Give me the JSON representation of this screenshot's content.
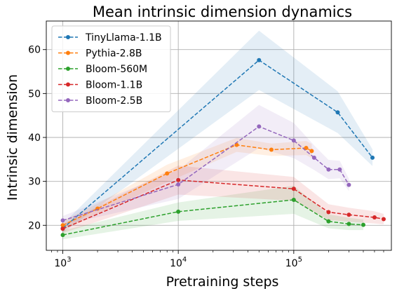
{
  "chart_data": {
    "type": "line",
    "title": "Mean intrinsic dimension dynamics",
    "xlabel": "Pretraining steps",
    "ylabel": "Intrinsic dimension",
    "xscale": "log",
    "xlim": [
      720,
      700000
    ],
    "ylim": [
      14.3,
      66.5
    ],
    "xticks": [
      {
        "value": 1000,
        "base": "10",
        "exp": "3"
      },
      {
        "value": 10000,
        "base": "10",
        "exp": "4"
      },
      {
        "value": 100000,
        "base": "10",
        "exp": "5"
      }
    ],
    "yticks": [
      20,
      30,
      40,
      50,
      60
    ],
    "grid": true,
    "legend": "upper-left",
    "series": [
      {
        "name": "TinyLlama-1.1B",
        "color": "#1f77b4",
        "x": [
          1000,
          50000,
          240000,
          480000
        ],
        "y": [
          19.3,
          57.6,
          45.7,
          35.4
        ],
        "band": [
          [
            18.3,
            20.3
          ],
          [
            50.8,
            64.3
          ],
          [
            41.0,
            50.5
          ],
          [
            33.5,
            37.3
          ]
        ]
      },
      {
        "name": "Pythia-2.8B",
        "color": "#ff7f0e",
        "x": [
          1000,
          2000,
          8000,
          32000,
          64000,
          128000,
          143000
        ],
        "y": [
          20.0,
          23.8,
          31.8,
          38.3,
          37.2,
          37.6,
          36.9
        ],
        "band": [
          [
            19.0,
            21.0
          ],
          [
            22.7,
            24.9
          ],
          [
            29.8,
            33.8
          ],
          [
            36.7,
            39.9
          ],
          [
            35.8,
            38.6
          ],
          [
            36.0,
            39.2
          ],
          [
            35.3,
            38.5
          ]
        ]
      },
      {
        "name": "Bloom-560M",
        "color": "#2ca02c",
        "x": [
          1000,
          10000,
          100000,
          200000,
          300000,
          400000
        ],
        "y": [
          17.8,
          23.1,
          25.8,
          20.9,
          20.3,
          20.1
        ],
        "band": [
          [
            16.8,
            18.8
          ],
          [
            21.0,
            25.2
          ],
          [
            22.6,
            29.0
          ],
          [
            19.3,
            22.5
          ],
          [
            18.9,
            21.7
          ],
          [
            18.9,
            21.3
          ]
        ]
      },
      {
        "name": "Bloom-1.1B",
        "color": "#d62728",
        "x": [
          1000,
          10000,
          100000,
          200000,
          300000,
          500000,
          600000
        ],
        "y": [
          19.2,
          30.3,
          28.3,
          23.0,
          22.4,
          21.8,
          21.4
        ],
        "band": [
          [
            18.2,
            20.2
          ],
          [
            27.0,
            33.6
          ],
          [
            25.6,
            31.0
          ],
          [
            21.2,
            24.8
          ],
          [
            20.8,
            24.0
          ],
          [
            20.4,
            23.2
          ],
          [
            20.2,
            22.6
          ]
        ]
      },
      {
        "name": "Bloom-2.5B",
        "color": "#9467bd",
        "x": [
          1000,
          10000,
          50000,
          100000,
          150000,
          200000,
          250000,
          300000
        ],
        "y": [
          21.1,
          29.3,
          42.5,
          39.3,
          35.4,
          32.7,
          32.7,
          29.2
        ],
        "band": [
          [
            20.1,
            22.1
          ],
          [
            26.0,
            32.6
          ],
          [
            37.6,
            47.4
          ],
          [
            35.3,
            43.3
          ],
          [
            32.6,
            38.2
          ],
          [
            30.5,
            34.9
          ],
          [
            30.7,
            34.7
          ],
          [
            27.8,
            30.6
          ]
        ]
      }
    ]
  }
}
